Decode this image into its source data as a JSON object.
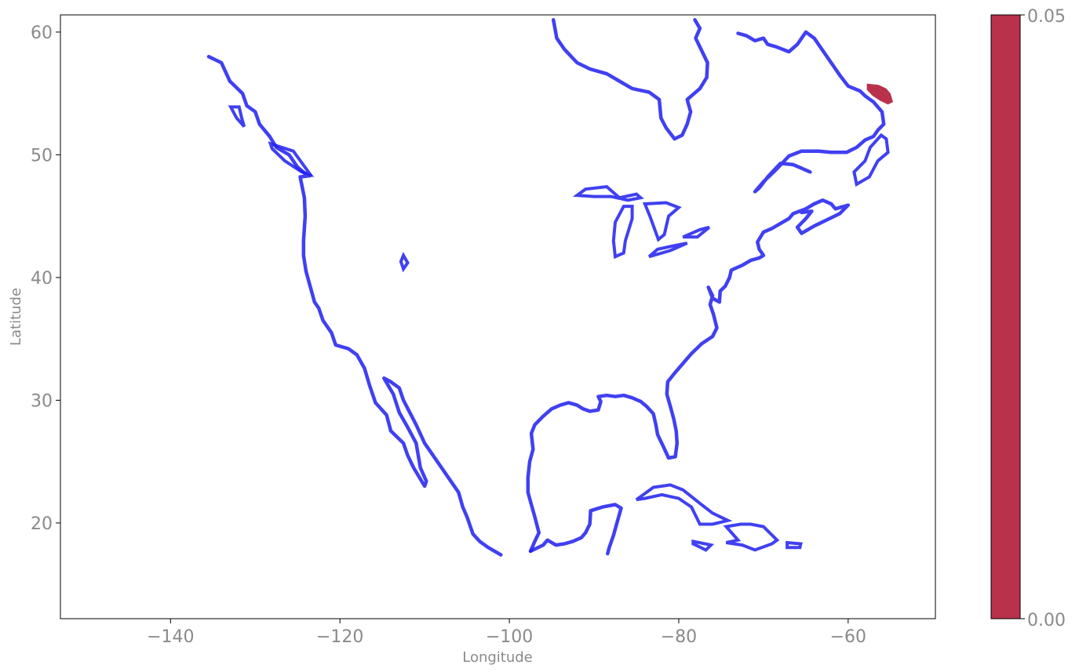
{
  "chart_data": {
    "type": "map",
    "xlabel": "Longitude",
    "ylabel": "Latitude",
    "xlim": [
      -153,
      -49.7
    ],
    "ylim": [
      12.2,
      61.4
    ],
    "xticks": [
      -140,
      -120,
      -100,
      -80,
      -60
    ],
    "yticks": [
      20,
      30,
      40,
      50,
      60
    ],
    "xtick_labels": [
      "−140",
      "−120",
      "−100",
      "−80",
      "−60"
    ],
    "ytick_labels": [
      "20",
      "30",
      "40",
      "50",
      "60"
    ],
    "grid": false,
    "coastline_color": "#1f1ff0",
    "highlight_color": "#b9314b",
    "colorbar": {
      "min": 0.0,
      "max": 0.05,
      "tick_labels": [
        "0.00",
        "0.05"
      ],
      "color": "#b9314b"
    },
    "coastlines": [
      [
        [
          -135.5,
          58
        ],
        [
          -134,
          57.5
        ],
        [
          -133,
          56
        ],
        [
          -131.5,
          55
        ],
        [
          -131,
          54
        ],
        [
          -130,
          53.5
        ],
        [
          -129.5,
          52.5
        ],
        [
          -128.3,
          51.5
        ],
        [
          -127.5,
          50.6
        ],
        [
          -126,
          50
        ],
        [
          -125,
          49
        ],
        [
          -124,
          48.4
        ],
        [
          -123.5,
          48.3
        ],
        [
          -124.7,
          48.2
        ],
        [
          -124.2,
          46.5
        ],
        [
          -124.1,
          45
        ],
        [
          -124.3,
          43
        ],
        [
          -124.3,
          41.8
        ],
        [
          -124,
          40.5
        ],
        [
          -123.6,
          39.5
        ],
        [
          -123,
          38
        ],
        [
          -122.5,
          37.5
        ],
        [
          -122,
          36.5
        ],
        [
          -121,
          35.5
        ],
        [
          -120.5,
          34.5
        ],
        [
          -119,
          34.2
        ],
        [
          -118,
          33.7
        ],
        [
          -117.1,
          32.6
        ],
        [
          -116.5,
          31.2
        ],
        [
          -115.8,
          29.8
        ],
        [
          -114.5,
          28.8
        ],
        [
          -114,
          27.5
        ],
        [
          -112.5,
          26.5
        ],
        [
          -112,
          25.5
        ],
        [
          -111.3,
          24.5
        ],
        [
          -110,
          23
        ],
        [
          -109.8,
          23.4
        ],
        [
          -110.5,
          24.5
        ],
        [
          -111,
          26.5
        ],
        [
          -112,
          27.8
        ],
        [
          -113,
          29
        ],
        [
          -113.7,
          30.5
        ],
        [
          -114.8,
          31.8
        ],
        [
          -114,
          31.5
        ],
        [
          -113,
          31
        ],
        [
          -112.5,
          30
        ],
        [
          -111,
          28
        ],
        [
          -110,
          26.5
        ],
        [
          -109,
          25.5
        ],
        [
          -108,
          24.5
        ],
        [
          -107,
          23.5
        ],
        [
          -106,
          22.5
        ],
        [
          -105.5,
          21.3
        ],
        [
          -105,
          20.5
        ],
        [
          -104.3,
          19.1
        ],
        [
          -103.5,
          18.5
        ],
        [
          -102.5,
          18
        ],
        [
          -101,
          17.4
        ]
      ],
      [
        [
          -97.5,
          17.7
        ],
        [
          -96,
          18.2
        ],
        [
          -95.5,
          18.6
        ],
        [
          -94.5,
          18.2
        ],
        [
          -93.5,
          18.3
        ],
        [
          -92.5,
          18.5
        ],
        [
          -91.5,
          18.8
        ],
        [
          -91,
          19.2
        ],
        [
          -90.5,
          19.9
        ],
        [
          -90.4,
          21
        ],
        [
          -89,
          21.3
        ],
        [
          -87.5,
          21.5
        ],
        [
          -86.8,
          21.2
        ],
        [
          -87.3,
          20
        ],
        [
          -87.7,
          19
        ],
        [
          -88.2,
          18
        ],
        [
          -88.4,
          17.5
        ]
      ],
      [
        [
          -97.5,
          17.7
        ],
        [
          -97,
          18.5
        ],
        [
          -96.5,
          19.2
        ],
        [
          -97,
          20.5
        ],
        [
          -97.4,
          21.5
        ],
        [
          -97.8,
          22.5
        ],
        [
          -97.8,
          23.7
        ],
        [
          -97.6,
          25
        ],
        [
          -97.2,
          26
        ],
        [
          -97.4,
          27.3
        ],
        [
          -97,
          28
        ],
        [
          -96,
          28.7
        ],
        [
          -95,
          29.3
        ],
        [
          -94,
          29.6
        ],
        [
          -93,
          29.8
        ],
        [
          -92,
          29.6
        ],
        [
          -91.3,
          29.3
        ],
        [
          -90.5,
          29.1
        ],
        [
          -89.5,
          29.2
        ],
        [
          -89.2,
          29.9
        ],
        [
          -89.5,
          30.3
        ],
        [
          -88.5,
          30.4
        ],
        [
          -87.5,
          30.3
        ],
        [
          -86.5,
          30.4
        ],
        [
          -85.5,
          30.2
        ],
        [
          -84.5,
          29.9
        ],
        [
          -83.8,
          29.5
        ],
        [
          -83,
          28.9
        ],
        [
          -82.7,
          28
        ],
        [
          -82.5,
          27.2
        ],
        [
          -81.8,
          26.2
        ],
        [
          -81.2,
          25.3
        ],
        [
          -80.4,
          25.4
        ],
        [
          -80.2,
          26.5
        ],
        [
          -80.3,
          27.5
        ],
        [
          -80.6,
          28.5
        ],
        [
          -81,
          29.5
        ],
        [
          -81.4,
          30.5
        ],
        [
          -81.3,
          31.5
        ],
        [
          -80.5,
          32.2
        ],
        [
          -79.5,
          33
        ],
        [
          -78.5,
          33.8
        ],
        [
          -77.3,
          34.6
        ],
        [
          -76,
          35.2
        ],
        [
          -75.5,
          35.9
        ],
        [
          -75.9,
          37
        ],
        [
          -76.3,
          37.8
        ],
        [
          -76,
          38.5
        ],
        [
          -76.5,
          39.2
        ],
        [
          -76,
          38.3
        ],
        [
          -75.2,
          38
        ],
        [
          -75.1,
          38.9
        ],
        [
          -74.5,
          39.3
        ],
        [
          -74,
          40
        ],
        [
          -73.8,
          40.6
        ],
        [
          -72.5,
          41
        ],
        [
          -71.5,
          41.4
        ],
        [
          -70.5,
          41.6
        ],
        [
          -70,
          41.8
        ],
        [
          -70.5,
          42.3
        ],
        [
          -70.7,
          42.9
        ],
        [
          -70,
          43.7
        ],
        [
          -69,
          44
        ],
        [
          -68,
          44.4
        ],
        [
          -67,
          44.8
        ],
        [
          -66.5,
          45.2
        ],
        [
          -65,
          45.6
        ],
        [
          -64,
          46
        ],
        [
          -63,
          46.3
        ],
        [
          -62,
          46
        ],
        [
          -61.5,
          45.6
        ],
        [
          -60,
          45.9
        ],
        [
          -61,
          45.2
        ],
        [
          -62.5,
          44.7
        ],
        [
          -64,
          44.2
        ],
        [
          -65.5,
          43.6
        ],
        [
          -66,
          44.1
        ],
        [
          -65,
          44.8
        ],
        [
          -64.3,
          45.4
        ],
        [
          -65.5,
          45.3
        ]
      ],
      [
        [
          -64.5,
          48.6
        ],
        [
          -65.5,
          48.9
        ],
        [
          -66.5,
          49.2
        ],
        [
          -68,
          49.3
        ],
        [
          -69.5,
          48.2
        ],
        [
          -70.5,
          47.3
        ],
        [
          -71,
          47
        ],
        [
          -70,
          47.8
        ],
        [
          -68.5,
          48.8
        ],
        [
          -67,
          49.9
        ],
        [
          -65.5,
          50.3
        ],
        [
          -63.5,
          50.3
        ],
        [
          -62,
          50.2
        ],
        [
          -60.2,
          50.2
        ],
        [
          -59,
          50.6
        ],
        [
          -58,
          51.2
        ],
        [
          -57,
          51.5
        ],
        [
          -56.5,
          52
        ],
        [
          -55.8,
          52.5
        ],
        [
          -56,
          53.5
        ],
        [
          -57,
          54.3
        ],
        [
          -58,
          54.8
        ],
        [
          -58.6,
          55.2
        ],
        [
          -60,
          55.6
        ],
        [
          -61,
          56.5
        ],
        [
          -62,
          57.5
        ],
        [
          -63,
          58.5
        ],
        [
          -64,
          59.5
        ],
        [
          -65,
          60
        ],
        [
          -66,
          59
        ],
        [
          -67,
          58.4
        ],
        [
          -68.5,
          58.8
        ],
        [
          -69.5,
          59
        ],
        [
          -70,
          59.5
        ],
        [
          -71,
          59.3
        ],
        [
          -72,
          59.7
        ],
        [
          -73,
          59.9
        ]
      ],
      [
        [
          -94.8,
          61
        ],
        [
          -94.4,
          59.5
        ],
        [
          -93.5,
          58.6
        ],
        [
          -92,
          57.5
        ],
        [
          -90.5,
          57
        ],
        [
          -88.5,
          56.6
        ],
        [
          -87,
          56
        ],
        [
          -85.5,
          55.4
        ],
        [
          -83.5,
          55.1
        ],
        [
          -82.3,
          54.5
        ],
        [
          -82.1,
          53
        ],
        [
          -81.5,
          52.2
        ],
        [
          -80.5,
          51.3
        ],
        [
          -79.6,
          51.6
        ],
        [
          -79,
          52.5
        ],
        [
          -78.6,
          53.5
        ],
        [
          -79,
          54.5
        ],
        [
          -77.5,
          55.4
        ],
        [
          -76.7,
          56.3
        ],
        [
          -76.6,
          57.5
        ],
        [
          -77.3,
          58.5
        ],
        [
          -78,
          59.5
        ],
        [
          -77.5,
          60.3
        ],
        [
          -78.1,
          61
        ]
      ]
    ],
    "islands": [
      [
        [
          -56.1,
          51.6
        ],
        [
          -55.5,
          51.3
        ],
        [
          -55.3,
          50.2
        ],
        [
          -56.5,
          49.5
        ],
        [
          -57.5,
          48.2
        ],
        [
          -59,
          47.6
        ],
        [
          -59.3,
          48.6
        ],
        [
          -58,
          49.5
        ],
        [
          -57.4,
          50.6
        ],
        [
          -56.1,
          51.6
        ]
      ],
      [
        [
          -85,
          21.9
        ],
        [
          -83,
          22.9
        ],
        [
          -81,
          23.1
        ],
        [
          -79.5,
          22.7
        ],
        [
          -77.5,
          21.6
        ],
        [
          -76,
          20.8
        ],
        [
          -74.2,
          20.2
        ],
        [
          -76,
          19.9
        ],
        [
          -77.5,
          19.9
        ],
        [
          -78.5,
          21.3
        ],
        [
          -80,
          22
        ],
        [
          -82,
          22.3
        ],
        [
          -84,
          22
        ],
        [
          -85,
          21.9
        ]
      ],
      [
        [
          -74.4,
          19.7
        ],
        [
          -72.7,
          19.9
        ],
        [
          -71.5,
          19.9
        ],
        [
          -70,
          19.7
        ],
        [
          -68.4,
          18.6
        ],
        [
          -69,
          18.3
        ],
        [
          -71,
          17.8
        ],
        [
          -72.5,
          18.2
        ],
        [
          -74.4,
          18.4
        ],
        [
          -73,
          18.6
        ],
        [
          -74.4,
          19.7
        ]
      ],
      [
        [
          -78.3,
          18.5
        ],
        [
          -76.2,
          18.2
        ],
        [
          -76.8,
          17.8
        ],
        [
          -78.3,
          18.3
        ],
        [
          -78.3,
          18.5
        ]
      ],
      [
        [
          -67.2,
          18.4
        ],
        [
          -65.6,
          18.3
        ],
        [
          -65.7,
          18
        ],
        [
          -67.2,
          18
        ],
        [
          -67.2,
          18.4
        ]
      ],
      [
        [
          -131.9,
          53.9
        ],
        [
          -131.6,
          53
        ],
        [
          -131.3,
          52.3
        ],
        [
          -132.2,
          53
        ],
        [
          -132.9,
          53.9
        ],
        [
          -131.9,
          53.9
        ]
      ],
      [
        [
          -128.2,
          50.9
        ],
        [
          -125.5,
          50.3
        ],
        [
          -123.5,
          48.4
        ],
        [
          -124.5,
          48.6
        ],
        [
          -126.5,
          49.5
        ],
        [
          -128,
          50.5
        ],
        [
          -128.2,
          50.9
        ]
      ],
      [
        [
          -91,
          47.2
        ],
        [
          -88.5,
          47.4
        ],
        [
          -87,
          46.5
        ],
        [
          -85,
          46.8
        ],
        [
          -84.5,
          46.5
        ],
        [
          -86,
          46.3
        ],
        [
          -88,
          46.6
        ],
        [
          -90,
          46.6
        ],
        [
          -92,
          46.7
        ],
        [
          -91,
          47.2
        ]
      ],
      [
        [
          -87.5,
          41.7
        ],
        [
          -87.7,
          43
        ],
        [
          -87.5,
          44.5
        ],
        [
          -86.5,
          45.8
        ],
        [
          -85.5,
          45.8
        ],
        [
          -85.5,
          44.8
        ],
        [
          -86.3,
          43
        ],
        [
          -86.5,
          42
        ],
        [
          -87.5,
          41.7
        ]
      ],
      [
        [
          -83.5,
          41.7
        ],
        [
          -82.5,
          42.3
        ],
        [
          -80.5,
          42.6
        ],
        [
          -79,
          42.8
        ],
        [
          -81,
          42.2
        ],
        [
          -83.5,
          41.7
        ]
      ],
      [
        [
          -79.5,
          43.3
        ],
        [
          -77.5,
          43.9
        ],
        [
          -76.4,
          44.1
        ],
        [
          -77.8,
          43.3
        ],
        [
          -79.5,
          43.3
        ]
      ],
      [
        [
          -84,
          46
        ],
        [
          -83.4,
          45
        ],
        [
          -82.4,
          43.1
        ],
        [
          -81.7,
          43.5
        ],
        [
          -81.2,
          45
        ],
        [
          -80,
          45.7
        ],
        [
          -81.5,
          46.1
        ],
        [
          -84,
          46
        ]
      ],
      [
        [
          -112.5,
          41.8
        ],
        [
          -112,
          41.2
        ],
        [
          -112.5,
          40.7
        ],
        [
          -112.8,
          41.3
        ],
        [
          -112.5,
          41.8
        ]
      ]
    ],
    "highlight_areas": [
      [
        [
          -57.8,
          55.8
        ],
        [
          -56.4,
          55.7
        ],
        [
          -55.5,
          55.4
        ],
        [
          -55,
          55
        ],
        [
          -54.7,
          54.3
        ],
        [
          -55.3,
          54.1
        ],
        [
          -56.2,
          54.4
        ],
        [
          -57.1,
          54.8
        ],
        [
          -57.8,
          55.3
        ],
        [
          -57.8,
          55.8
        ]
      ]
    ]
  }
}
